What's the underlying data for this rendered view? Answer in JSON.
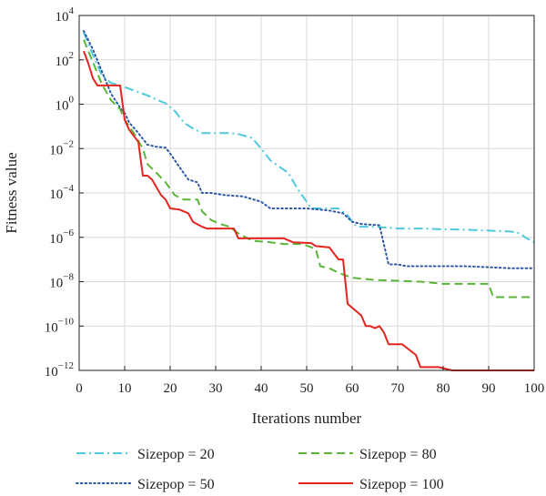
{
  "chart_data": {
    "type": "line",
    "xlabel": "Iterations number",
    "ylabel": "Fitness value",
    "xlim": [
      0,
      100
    ],
    "ylim": [
      1e-12,
      10000
    ],
    "yscale": "log",
    "grid": true,
    "legend_position": "bottom",
    "x_ticks": [
      {
        "value": 0,
        "label": "0"
      },
      {
        "value": 10,
        "label": "10"
      },
      {
        "value": 20,
        "label": "20"
      },
      {
        "value": 30,
        "label": "30"
      },
      {
        "value": 40,
        "label": "40"
      },
      {
        "value": 50,
        "label": "50"
      },
      {
        "value": 60,
        "label": "60"
      },
      {
        "value": 70,
        "label": "70"
      },
      {
        "value": 80,
        "label": "80"
      },
      {
        "value": 90,
        "label": "90"
      },
      {
        "value": 100,
        "label": "100"
      }
    ],
    "y_ticks": [
      {
        "value": 1e-12,
        "base": "10",
        "exp": "−12"
      },
      {
        "value": 1e-10,
        "base": "10",
        "exp": "−10"
      },
      {
        "value": 1e-08,
        "base": "10",
        "exp": "−8"
      },
      {
        "value": 1e-06,
        "base": "10",
        "exp": "−6"
      },
      {
        "value": 0.0001,
        "base": "10",
        "exp": "−4"
      },
      {
        "value": 0.01,
        "base": "10",
        "exp": "−2"
      },
      {
        "value": 1,
        "base": "10",
        "exp": "0"
      },
      {
        "value": 100,
        "base": "10",
        "exp": "2"
      },
      {
        "value": 10000,
        "base": "10",
        "exp": "4"
      }
    ],
    "series": [
      {
        "name": "Sizepop = 20",
        "color": "#4fc9dd",
        "dash": "dashdot",
        "points": [
          [
            1,
            1700
          ],
          [
            3,
            170
          ],
          [
            5,
            20
          ],
          [
            7,
            9
          ],
          [
            9,
            7
          ],
          [
            11,
            5
          ],
          [
            13,
            3.5
          ],
          [
            15,
            2.5
          ],
          [
            17,
            1.6
          ],
          [
            19,
            1.1
          ],
          [
            21,
            0.5
          ],
          [
            23,
            0.15
          ],
          [
            25,
            0.08
          ],
          [
            27,
            0.05
          ],
          [
            30,
            0.05
          ],
          [
            33,
            0.05
          ],
          [
            35,
            0.045
          ],
          [
            38,
            0.03
          ],
          [
            40,
            0.01
          ],
          [
            42,
            0.003
          ],
          [
            44,
            0.0015
          ],
          [
            46,
            0.0008
          ],
          [
            48,
            0.00015
          ],
          [
            50,
            4e-05
          ],
          [
            51,
            2e-05
          ],
          [
            54,
            2e-05
          ],
          [
            57,
            2e-05
          ],
          [
            59,
            1e-05
          ],
          [
            60,
            5e-06
          ],
          [
            61,
            3e-06
          ],
          [
            65,
            3e-06
          ],
          [
            70,
            2.5e-06
          ],
          [
            75,
            2.5e-06
          ],
          [
            80,
            2.3e-06
          ],
          [
            85,
            2.2e-06
          ],
          [
            90,
            2e-06
          ],
          [
            95,
            1.8e-06
          ],
          [
            97,
            1.5e-06
          ],
          [
            98,
            1e-06
          ],
          [
            100,
            6e-07
          ]
        ]
      },
      {
        "name": "Sizepop = 50",
        "color": "#2e57a5",
        "dash": "dotted",
        "points": [
          [
            1,
            2000
          ],
          [
            3,
            300
          ],
          [
            5,
            30
          ],
          [
            7,
            3
          ],
          [
            9,
            0.7
          ],
          [
            10,
            0.4
          ],
          [
            11,
            0.15
          ],
          [
            13,
            0.05
          ],
          [
            15,
            0.015
          ],
          [
            17,
            0.012
          ],
          [
            19,
            0.011
          ],
          [
            20,
            0.006
          ],
          [
            22,
            0.0015
          ],
          [
            24,
            0.0004
          ],
          [
            26,
            0.0003
          ],
          [
            27,
            0.0001
          ],
          [
            29,
            0.0001
          ],
          [
            32,
            8e-05
          ],
          [
            36,
            7e-05
          ],
          [
            40,
            4e-05
          ],
          [
            42,
            2e-05
          ],
          [
            50,
            2e-05
          ],
          [
            55,
            1.6e-05
          ],
          [
            58,
            1.2e-05
          ],
          [
            60,
            5e-06
          ],
          [
            62,
            4e-06
          ],
          [
            66,
            3.5e-06
          ],
          [
            68,
            6e-08
          ],
          [
            70,
            6e-08
          ],
          [
            72,
            5e-08
          ],
          [
            80,
            5e-08
          ],
          [
            85,
            5e-08
          ],
          [
            90,
            4.5e-08
          ],
          [
            95,
            4e-08
          ],
          [
            100,
            4e-08
          ]
        ]
      },
      {
        "name": "Sizepop = 80",
        "color": "#5bb538",
        "dash": "dashed",
        "points": [
          [
            1,
            800
          ],
          [
            3,
            80
          ],
          [
            5,
            8
          ],
          [
            7,
            1.5
          ],
          [
            9,
            0.6
          ],
          [
            10,
            0.2
          ],
          [
            12,
            0.05
          ],
          [
            14,
            0.01
          ],
          [
            15,
            0.002
          ],
          [
            17,
            0.0008
          ],
          [
            19,
            0.0003
          ],
          [
            21,
            8e-05
          ],
          [
            23,
            5e-05
          ],
          [
            26,
            5e-05
          ],
          [
            27,
            1.5e-05
          ],
          [
            29,
            6e-06
          ],
          [
            31,
            4e-06
          ],
          [
            33,
            3e-06
          ],
          [
            35,
            1.5e-06
          ],
          [
            38,
            7e-07
          ],
          [
            42,
            6e-07
          ],
          [
            45,
            5e-07
          ],
          [
            49,
            5e-07
          ],
          [
            52,
            3e-07
          ],
          [
            53,
            5e-08
          ],
          [
            55,
            4e-08
          ],
          [
            57,
            2.5e-08
          ],
          [
            60,
            1.5e-08
          ],
          [
            65,
            1.2e-08
          ],
          [
            70,
            1.1e-08
          ],
          [
            75,
            1e-08
          ],
          [
            80,
            8e-09
          ],
          [
            85,
            8e-09
          ],
          [
            90,
            8e-09
          ],
          [
            91,
            2e-09
          ],
          [
            95,
            2e-09
          ],
          [
            100,
            2e-09
          ]
        ]
      },
      {
        "name": "Sizepop = 100",
        "color": "#e3251f",
        "dash": "solid",
        "points": [
          [
            1,
            250
          ],
          [
            2,
            70
          ],
          [
            3,
            15
          ],
          [
            4,
            7
          ],
          [
            9,
            7
          ],
          [
            10,
            0.2
          ],
          [
            11,
            0.07
          ],
          [
            13,
            0.02
          ],
          [
            14,
            0.0006
          ],
          [
            15,
            0.0006
          ],
          [
            16,
            0.0004
          ],
          [
            18,
            8e-05
          ],
          [
            19,
            5e-05
          ],
          [
            20,
            2e-05
          ],
          [
            22,
            1.8e-05
          ],
          [
            24,
            1.2e-05
          ],
          [
            25,
            5e-06
          ],
          [
            27,
            3e-06
          ],
          [
            28,
            2.5e-06
          ],
          [
            34,
            2.5e-06
          ],
          [
            35,
            9e-07
          ],
          [
            45,
            9e-07
          ],
          [
            47,
            6e-07
          ],
          [
            51,
            5.5e-07
          ],
          [
            52,
            4e-07
          ],
          [
            55,
            3.5e-07
          ],
          [
            57,
            1e-07
          ],
          [
            58,
            1e-07
          ],
          [
            59,
            1e-09
          ],
          [
            62,
            3e-10
          ],
          [
            63,
            1e-10
          ],
          [
            64,
            1e-10
          ],
          [
            65,
            8e-11
          ],
          [
            66,
            1e-10
          ],
          [
            67,
            5e-11
          ],
          [
            68,
            1.5e-11
          ],
          [
            71,
            1.5e-11
          ],
          [
            74,
            5e-12
          ],
          [
            75,
            1.4e-12
          ],
          [
            79,
            1.4e-12
          ],
          [
            82,
            9e-13
          ],
          [
            95,
            9e-13
          ],
          [
            97,
            6e-13
          ],
          [
            99,
            4e-13
          ],
          [
            100,
            3e-13
          ]
        ]
      }
    ]
  }
}
